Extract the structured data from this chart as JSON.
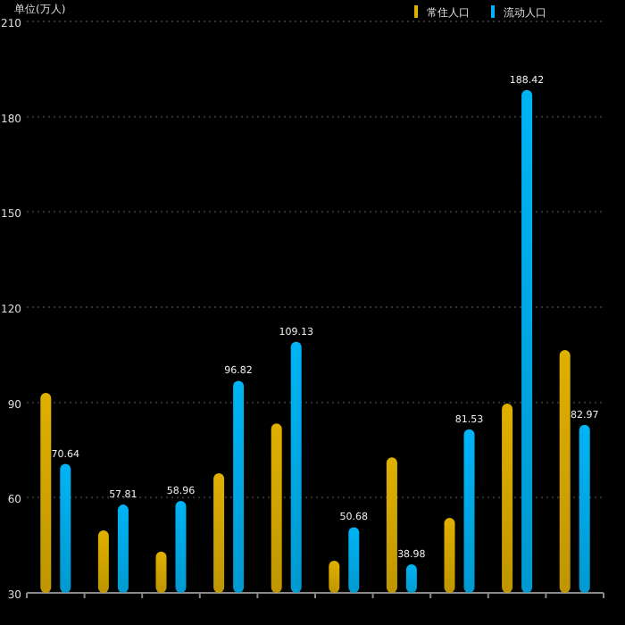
{
  "chart_data": {
    "type": "bar",
    "ylabel": "单位(万人)",
    "categories": [
      null,
      null,
      null,
      null,
      null,
      null,
      null,
      null,
      null,
      null
    ],
    "series": [
      {
        "name": "常住人口",
        "color": "#e0b000",
        "values": [
          93,
          49.7,
          43,
          67.7,
          83.4,
          40.1,
          72.7,
          53.6,
          89.6,
          106.5
        ]
      },
      {
        "name": "流动人口",
        "color": "#00b4f5",
        "values": [
          70.64,
          57.81,
          58.96,
          96.82,
          109.13,
          50.68,
          38.98,
          81.53,
          188.42,
          82.97
        ],
        "value_labels": [
          "70.64",
          "57.81",
          "58.96",
          "96.82",
          "109.13",
          "50.68",
          "38.98",
          "81.53",
          "188.42",
          "82.97"
        ]
      }
    ],
    "ylim": [
      30,
      210
    ],
    "yticks": [
      30,
      60,
      90,
      120,
      150,
      180,
      210
    ],
    "grid": "y",
    "legend": "top right"
  }
}
